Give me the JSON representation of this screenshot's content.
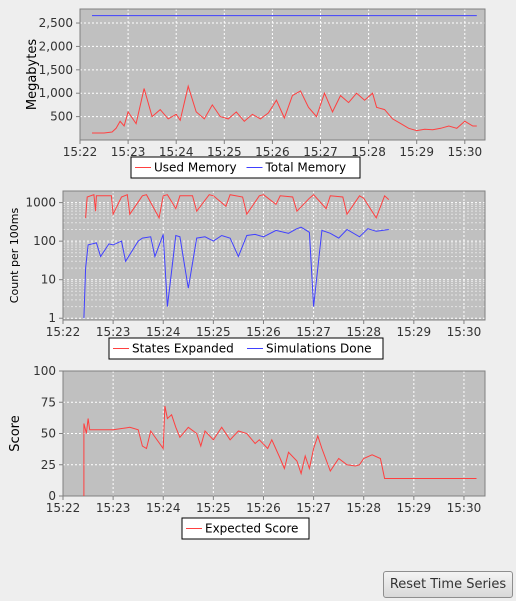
{
  "reset_button": {
    "label": "Reset Time Series"
  },
  "chart_data": [
    {
      "type": "line",
      "ylabel": "Megabytes",
      "yscale": "linear",
      "ylim": [
        0,
        2800
      ],
      "yticks": [
        500,
        1000,
        1500,
        2000,
        2500
      ],
      "ytick_labels": [
        "500",
        "1,000",
        "1,500",
        "2,000",
        "2,500"
      ],
      "xlim_minutes": [
        0,
        8.42
      ],
      "xtick_labels": [
        "15:22",
        "15:23",
        "15:24",
        "15:25",
        "15:26",
        "15:27",
        "15:28",
        "15:29",
        "15:30"
      ],
      "grid": true,
      "legend_placement": "bottom-center",
      "series": [
        {
          "name": "Used Memory",
          "color": "#ff4040",
          "x": [
            "15:22:15",
            "15:22:30",
            "15:22:40",
            "15:22:45",
            "15:22:50",
            "15:22:55",
            "15:23:00",
            "15:23:10",
            "15:23:20",
            "15:23:30",
            "15:23:40",
            "15:23:50",
            "15:24:00",
            "15:24:05",
            "15:24:15",
            "15:24:25",
            "15:24:35",
            "15:24:45",
            "15:24:55",
            "15:25:05",
            "15:25:15",
            "15:25:25",
            "15:25:35",
            "15:25:45",
            "15:25:55",
            "15:26:05",
            "15:26:15",
            "15:26:25",
            "15:26:35",
            "15:26:45",
            "15:26:55",
            "15:27:05",
            "15:27:15",
            "15:27:25",
            "15:27:35",
            "15:27:45",
            "15:27:55",
            "15:28:05",
            "15:28:10",
            "15:28:20",
            "15:28:30",
            "15:28:40",
            "15:28:50",
            "15:29:00",
            "15:29:10",
            "15:29:20",
            "15:29:30",
            "15:29:40",
            "15:29:50",
            "15:30:00",
            "15:30:10",
            "15:30:15"
          ],
          "y": [
            150,
            150,
            170,
            250,
            400,
            300,
            600,
            350,
            1100,
            500,
            650,
            450,
            550,
            420,
            1150,
            600,
            450,
            750,
            500,
            450,
            600,
            400,
            550,
            450,
            580,
            850,
            470,
            950,
            1050,
            700,
            500,
            1000,
            600,
            950,
            800,
            1000,
            850,
            1000,
            700,
            650,
            450,
            350,
            250,
            200,
            230,
            220,
            250,
            300,
            250,
            400,
            300,
            300
          ]
        },
        {
          "name": "Total Memory",
          "color": "#4040ff",
          "x": [
            "15:22:15",
            "15:30:15"
          ],
          "y": [
            2660,
            2660
          ]
        }
      ]
    },
    {
      "type": "line",
      "ylabel": "Count per 100ms",
      "yscale": "log",
      "ylim": [
        0.9,
        2000
      ],
      "yticks": [
        1,
        10,
        100,
        1000
      ],
      "ytick_labels": [
        "1",
        "10",
        "100",
        "1000"
      ],
      "xlim_minutes": [
        0,
        8.42
      ],
      "xtick_labels": [
        "15:22",
        "15:23",
        "15:24",
        "15:25",
        "15:26",
        "15:27",
        "15:28",
        "15:29",
        "15:30"
      ],
      "grid": true,
      "legend_placement": "bottom-center",
      "series": [
        {
          "name": "States Expanded",
          "color": "#ff4040",
          "x": [
            "15:22:27",
            "15:22:29",
            "15:22:37",
            "15:22:39",
            "15:22:40",
            "15:22:58",
            "15:23:00",
            "15:23:10",
            "15:23:17",
            "15:23:20",
            "15:23:35",
            "15:23:40",
            "15:23:55",
            "15:24:00",
            "15:24:05",
            "15:24:15",
            "15:24:20",
            "15:24:35",
            "15:24:40",
            "15:24:55",
            "15:25:00",
            "15:25:15",
            "15:25:20",
            "15:25:35",
            "15:25:40",
            "15:25:55",
            "15:26:00",
            "15:26:15",
            "15:26:20",
            "15:26:35",
            "15:26:40",
            "15:26:55",
            "15:27:00",
            "15:27:15",
            "15:27:20",
            "15:27:35",
            "15:27:40",
            "15:27:55",
            "15:28:00",
            "15:28:15",
            "15:28:25",
            "15:28:30"
          ],
          "y": [
            400,
            1400,
            1600,
            600,
            1500,
            1500,
            500,
            1400,
            1600,
            500,
            1500,
            1600,
            400,
            1500,
            1600,
            700,
            1500,
            1500,
            600,
            1600,
            1500,
            800,
            1600,
            1400,
            500,
            1500,
            1600,
            900,
            1500,
            1400,
            600,
            1300,
            1600,
            700,
            1500,
            1400,
            500,
            1500,
            1300,
            400,
            1500,
            1200
          ]
        },
        {
          "name": "Simulations Done",
          "color": "#4040ff",
          "x": [
            "15:22:25",
            "15:22:27",
            "15:22:30",
            "15:22:40",
            "15:22:45",
            "15:22:55",
            "15:23:00",
            "15:23:10",
            "15:23:15",
            "15:23:30",
            "15:23:35",
            "15:23:45",
            "15:23:50",
            "15:24:00",
            "15:24:05",
            "15:24:15",
            "15:24:20",
            "15:24:30",
            "15:24:40",
            "15:24:50",
            "15:25:00",
            "15:25:10",
            "15:25:20",
            "15:25:30",
            "15:25:40",
            "15:25:50",
            "15:26:00",
            "15:26:15",
            "15:26:30",
            "15:26:40",
            "15:26:45",
            "15:26:55",
            "15:27:00",
            "15:27:10",
            "15:27:20",
            "15:27:30",
            "15:27:40",
            "15:27:55",
            "15:28:05",
            "15:28:15",
            "15:28:30"
          ],
          "y": [
            1,
            20,
            80,
            90,
            40,
            85,
            80,
            100,
            30,
            100,
            120,
            130,
            40,
            150,
            2,
            140,
            130,
            6,
            120,
            130,
            100,
            140,
            120,
            40,
            140,
            150,
            130,
            190,
            160,
            210,
            230,
            170,
            2,
            190,
            160,
            120,
            200,
            130,
            210,
            180,
            200
          ]
        }
      ]
    },
    {
      "type": "line",
      "ylabel": "Score",
      "yscale": "linear",
      "ylim": [
        0,
        100
      ],
      "yticks": [
        0,
        25,
        50,
        75,
        100
      ],
      "ytick_labels": [
        "0",
        "25",
        "50",
        "75",
        "100"
      ],
      "xlim_minutes": [
        0,
        8.42
      ],
      "xtick_labels": [
        "15:22",
        "15:23",
        "15:24",
        "15:25",
        "15:26",
        "15:27",
        "15:28",
        "15:29",
        "15:30"
      ],
      "grid": true,
      "legend_placement": "bottom-center",
      "series": [
        {
          "name": "Expected Score",
          "color": "#ff4040",
          "x": [
            "15:22:25",
            "15:22:25",
            "15:22:28",
            "15:22:30",
            "15:22:32",
            "15:22:35",
            "15:23:00",
            "15:23:20",
            "15:23:30",
            "15:23:35",
            "15:23:40",
            "15:23:45",
            "15:24:00",
            "15:24:02",
            "15:24:05",
            "15:24:10",
            "15:24:15",
            "15:24:20",
            "15:24:30",
            "15:24:40",
            "15:24:45",
            "15:24:50",
            "15:25:00",
            "15:25:05",
            "15:25:10",
            "15:25:20",
            "15:25:30",
            "15:25:40",
            "15:25:50",
            "15:25:55",
            "15:26:05",
            "15:26:10",
            "15:26:20",
            "15:26:25",
            "15:26:30",
            "15:26:40",
            "15:26:45",
            "15:26:50",
            "15:26:55",
            "15:27:00",
            "15:27:05",
            "15:27:10",
            "15:27:20",
            "15:27:30",
            "15:27:40",
            "15:27:50",
            "15:27:55",
            "15:28:00",
            "15:28:10",
            "15:28:20",
            "15:28:25",
            "15:30:15"
          ],
          "y": [
            0,
            58,
            50,
            62,
            53,
            53,
            53,
            55,
            53,
            40,
            38,
            52,
            38,
            72,
            62,
            65,
            55,
            47,
            55,
            50,
            40,
            52,
            45,
            50,
            55,
            45,
            52,
            50,
            42,
            45,
            38,
            45,
            30,
            22,
            35,
            28,
            18,
            32,
            22,
            38,
            48,
            38,
            20,
            30,
            25,
            24,
            25,
            30,
            33,
            30,
            14,
            14
          ]
        }
      ]
    }
  ]
}
